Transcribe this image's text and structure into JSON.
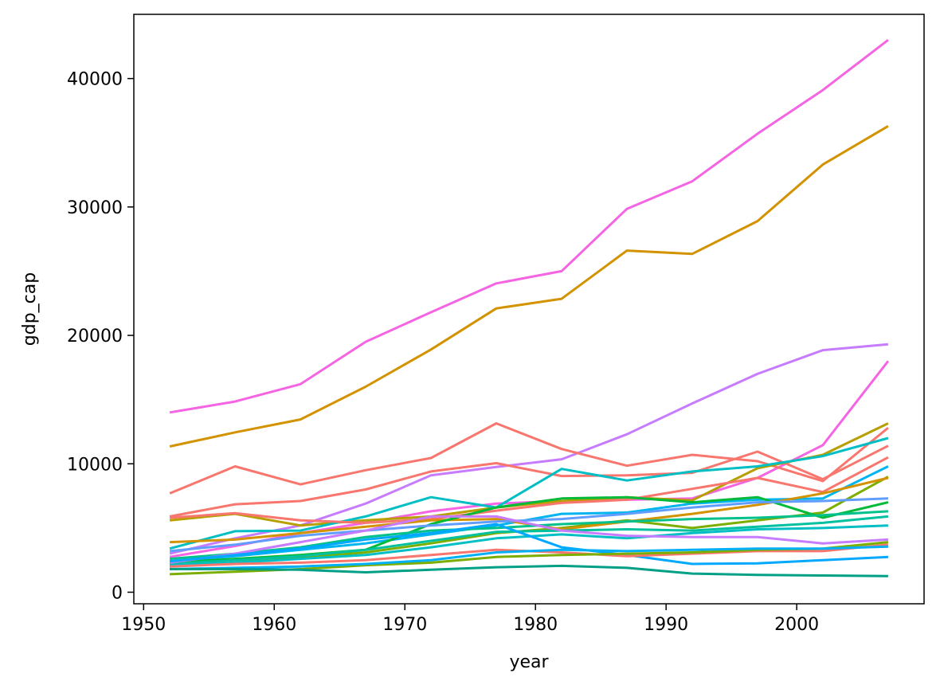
{
  "chart_data": {
    "type": "line",
    "title": "",
    "xlabel": "year",
    "ylabel": "gdp_cap",
    "xlim": [
      1949.25,
      2009.75
    ],
    "ylim": [
      -900,
      45000
    ],
    "x_ticks": [
      1950,
      1960,
      1970,
      1980,
      1990,
      2000
    ],
    "y_ticks": [
      0,
      10000,
      20000,
      30000,
      40000
    ],
    "grid": false,
    "legend": "none",
    "x": [
      1952,
      1957,
      1962,
      1967,
      1972,
      1977,
      1982,
      1987,
      1992,
      1997,
      2002,
      2007
    ],
    "series": [
      {
        "color": "#f564e3",
        "values": [
          14000,
          14850,
          16200,
          19500,
          21800,
          24050,
          25000,
          29850,
          32000,
          35700,
          39100,
          43000
        ]
      },
      {
        "color": "#d39200",
        "values": [
          11350,
          12450,
          13450,
          16000,
          18900,
          22100,
          22850,
          26600,
          26350,
          28900,
          33300,
          36300
        ]
      },
      {
        "color": "#c77cff",
        "values": [
          3000,
          4200,
          5200,
          6900,
          9100,
          9750,
          10350,
          12300,
          14700,
          17000,
          18850,
          19300
        ]
      },
      {
        "color": "#f564e3",
        "values": [
          2750,
          3600,
          4600,
          5400,
          6300,
          6900,
          7100,
          7200,
          7300,
          8900,
          11450,
          18000
        ]
      },
      {
        "color": "#f8766d",
        "values": [
          7700,
          9800,
          8400,
          9500,
          10450,
          13150,
          11150,
          9850,
          10700,
          10200,
          8650,
          12800
        ]
      },
      {
        "color": "#f8766d",
        "values": [
          5900,
          6850,
          7100,
          8000,
          9400,
          10050,
          9050,
          9100,
          9300,
          10950,
          8800,
          11400
        ]
      },
      {
        "color": "#b79f00",
        "values": [
          5600,
          6100,
          5200,
          5600,
          5900,
          6600,
          7100,
          7400,
          7150,
          9650,
          10700,
          13150
        ]
      },
      {
        "color": "#00bfc4",
        "values": [
          3400,
          4750,
          4800,
          5900,
          7400,
          6600,
          9600,
          8700,
          9400,
          9800,
          10600,
          12000
        ]
      },
      {
        "color": "#f8766d",
        "values": [
          5800,
          6150,
          5600,
          5400,
          5700,
          6350,
          6950,
          7200,
          8050,
          8900,
          7800,
          10500
        ]
      },
      {
        "color": "#00b4f0",
        "values": [
          2400,
          2800,
          3300,
          3800,
          4500,
          5200,
          6100,
          6200,
          6900,
          7200,
          7300,
          9800
        ]
      },
      {
        "color": "#7cae00",
        "values": [
          2000,
          2300,
          2700,
          3100,
          3800,
          4600,
          5000,
          5600,
          5000,
          5600,
          6200,
          9000
        ]
      },
      {
        "color": "#d39200",
        "values": [
          3900,
          4100,
          4600,
          5100,
          5600,
          5700,
          4900,
          5500,
          6100,
          6800,
          7700,
          8900
        ]
      },
      {
        "color": "#00ba38",
        "values": [
          2300,
          2600,
          2900,
          3300,
          5300,
          6600,
          7300,
          7400,
          7000,
          7400,
          5800,
          7000
        ]
      },
      {
        "color": "#619cff",
        "values": [
          3200,
          3700,
          4400,
          4800,
          5200,
          5500,
          5700,
          6100,
          6600,
          7000,
          7100,
          7300
        ]
      },
      {
        "color": "#00c08b",
        "values": [
          2600,
          3000,
          3500,
          4300,
          4800,
          5000,
          5300,
          5500,
          5700,
          5800,
          6000,
          6300
        ]
      },
      {
        "color": "#00c19f",
        "values": [
          2200,
          2500,
          2800,
          3300,
          4000,
          4700,
          4800,
          4900,
          4800,
          5100,
          5400,
          5900
        ]
      },
      {
        "color": "#00bfc4",
        "values": [
          2100,
          2300,
          2600,
          2900,
          3500,
          4200,
          4500,
          4200,
          4600,
          4900,
          5000,
          5200
        ]
      },
      {
        "color": "#c77cff",
        "values": [
          2300,
          3000,
          3900,
          4800,
          5900,
          5900,
          4800,
          4400,
          4300,
          4300,
          3800,
          4100
        ]
      },
      {
        "color": "#00a9ff",
        "values": [
          2400,
          2900,
          3400,
          4100,
          4600,
          5300,
          3500,
          2900,
          2200,
          2250,
          2500,
          2750
        ]
      },
      {
        "color": "#f8766d",
        "values": [
          2000,
          2200,
          2300,
          2500,
          2900,
          3300,
          3100,
          2800,
          3000,
          3200,
          3200,
          3700
        ]
      },
      {
        "color": "#7cae00",
        "values": [
          1400,
          1600,
          1800,
          2100,
          2300,
          2750,
          2900,
          3000,
          3100,
          3300,
          3400,
          3900
        ]
      },
      {
        "color": "#00b0f6",
        "values": [
          1800,
          1900,
          2000,
          2200,
          2500,
          3100,
          3300,
          3200,
          3300,
          3400,
          3400,
          3550
        ]
      },
      {
        "color": "#00a087",
        "values": [
          1800,
          1800,
          1750,
          1550,
          1750,
          1950,
          2050,
          1900,
          1450,
          1350,
          1300,
          1250
        ]
      }
    ]
  }
}
